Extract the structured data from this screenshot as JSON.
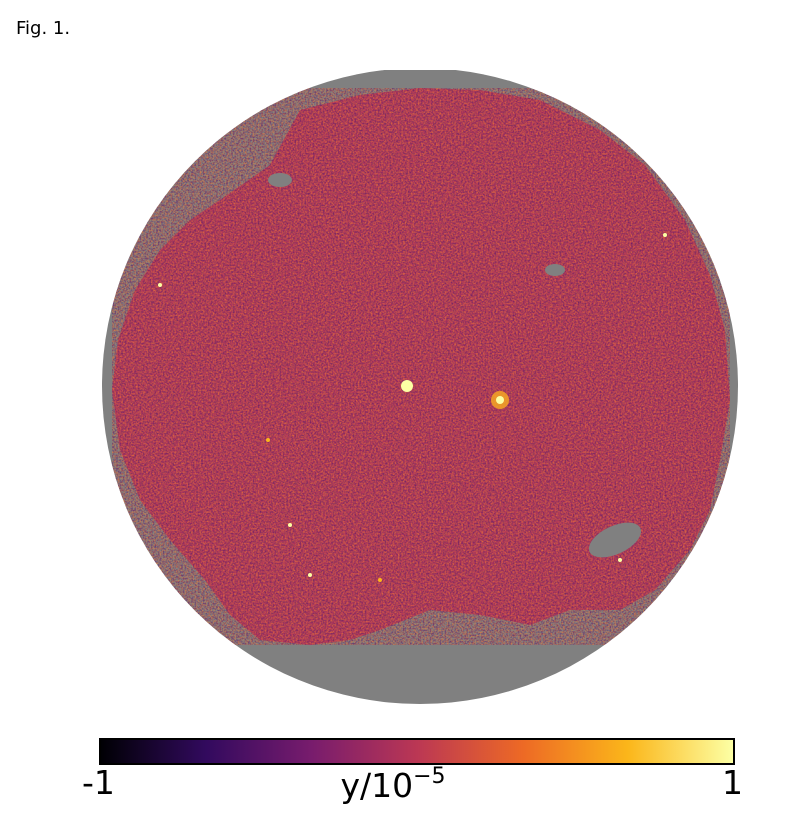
{
  "figure": {
    "label": "Fig. 1."
  },
  "map": {
    "mask_color": "#808080",
    "background_color": "#ffffff",
    "description_colormap": "inferno"
  },
  "colorbar": {
    "min_label": "-1",
    "max_label": "1",
    "label_base": "y/10",
    "label_exponent": "−5",
    "colors": [
      "#000004",
      "#320a5e",
      "#781c6d",
      "#bb3754",
      "#ed6925",
      "#fbb61a",
      "#fcffa4"
    ]
  }
}
